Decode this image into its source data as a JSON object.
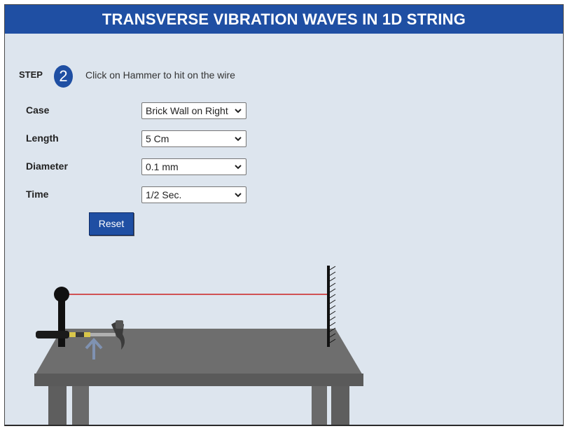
{
  "header": {
    "title": "TRANSVERSE VIBRATION WAVES IN 1D STRING"
  },
  "step": {
    "label": "STEP",
    "number": "2",
    "instruction": "Click on Hammer to hit on the  wire"
  },
  "controls": [
    {
      "label": "Case",
      "value": "Brick Wall on Right"
    },
    {
      "label": "Length",
      "value": "5 Cm"
    },
    {
      "label": "Diameter",
      "value": "0.1 mm"
    },
    {
      "label": "Time",
      "value": "1/2 Sec."
    }
  ],
  "reset_label": "Reset",
  "colors": {
    "header": "#1f4fa3",
    "background": "#dde5ee",
    "wire": "#cc2222",
    "table": "#6e6e6e"
  },
  "icons": {
    "select_arrow": "chevron-down-icon",
    "hint_arrow": "arrow-up-icon"
  }
}
